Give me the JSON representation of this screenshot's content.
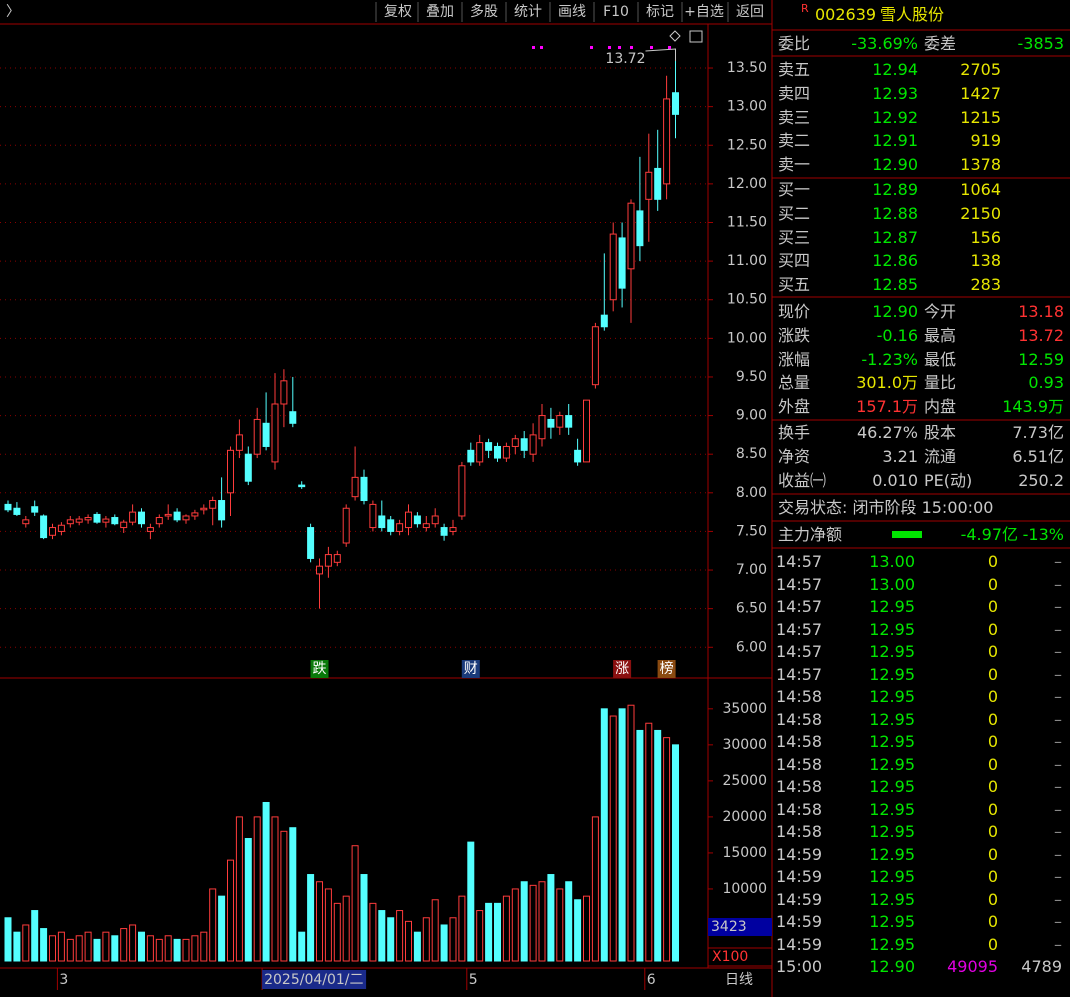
{
  "toolbar": {
    "back": "〉",
    "buttons": [
      "复权",
      "叠加",
      "多股",
      "统计",
      "画线",
      "F10",
      "标记",
      "+自选",
      "返回"
    ]
  },
  "chart_data": {
    "type": "candlestick",
    "ylim": [
      5.9,
      14.07
    ],
    "yticks": [
      {
        "value": 6,
        "label": "6.00"
      },
      {
        "value": 6.5,
        "label": "6.50"
      },
      {
        "value": 7,
        "label": "7.00"
      },
      {
        "value": 7.5,
        "label": "7.50"
      },
      {
        "value": 8,
        "label": "8.00"
      },
      {
        "value": 8.5,
        "label": "8.50"
      },
      {
        "value": 9,
        "label": "9.00"
      },
      {
        "value": 9.5,
        "label": "9.50"
      },
      {
        "value": 10,
        "label": "10.00"
      },
      {
        "value": 10.5,
        "label": "10.50"
      },
      {
        "value": 11,
        "label": "11.00"
      },
      {
        "value": 11.5,
        "label": "11.50"
      },
      {
        "value": 12,
        "label": "12.00"
      },
      {
        "value": 12.5,
        "label": "12.50"
      },
      {
        "value": 13,
        "label": "13.00"
      },
      {
        "value": 13.5,
        "label": "13.50"
      }
    ],
    "grid": true,
    "up_color": "#ff3c3c",
    "down_color": "#54ffff",
    "candles": [
      [
        7.85,
        7.9,
        7.75,
        7.78
      ],
      [
        7.8,
        7.88,
        7.7,
        7.72
      ],
      [
        7.6,
        7.7,
        7.55,
        7.65
      ],
      [
        7.82,
        7.9,
        7.7,
        7.75
      ],
      [
        7.7,
        7.72,
        7.4,
        7.42
      ],
      [
        7.45,
        7.6,
        7.4,
        7.55
      ],
      [
        7.5,
        7.62,
        7.45,
        7.58
      ],
      [
        7.6,
        7.7,
        7.55,
        7.65
      ],
      [
        7.62,
        7.7,
        7.58,
        7.66
      ],
      [
        7.65,
        7.72,
        7.6,
        7.68
      ],
      [
        7.72,
        7.75,
        7.6,
        7.62
      ],
      [
        7.62,
        7.7,
        7.55,
        7.66
      ],
      [
        7.68,
        7.72,
        7.58,
        7.6
      ],
      [
        7.55,
        7.65,
        7.48,
        7.62
      ],
      [
        7.62,
        7.85,
        7.58,
        7.75
      ],
      [
        7.75,
        7.8,
        7.55,
        7.6
      ],
      [
        7.5,
        7.6,
        7.4,
        7.55
      ],
      [
        7.6,
        7.72,
        7.55,
        7.68
      ],
      [
        7.7,
        7.85,
        7.65,
        7.72
      ],
      [
        7.75,
        7.8,
        7.62,
        7.65
      ],
      [
        7.65,
        7.72,
        7.6,
        7.7
      ],
      [
        7.7,
        7.78,
        7.65,
        7.74
      ],
      [
        7.78,
        7.85,
        7.72,
        7.8
      ],
      [
        7.8,
        7.95,
        7.58,
        7.9
      ],
      [
        7.9,
        8.2,
        7.55,
        7.65
      ],
      [
        8.0,
        8.6,
        7.7,
        8.55
      ],
      [
        8.55,
        8.95,
        8.45,
        8.75
      ],
      [
        8.5,
        8.6,
        8.1,
        8.15
      ],
      [
        8.5,
        9.1,
        8.45,
        8.95
      ],
      [
        8.9,
        9.3,
        8.55,
        8.6
      ],
      [
        8.4,
        9.55,
        8.3,
        9.15
      ],
      [
        9.15,
        9.6,
        8.85,
        9.45
      ],
      [
        9.05,
        9.5,
        8.85,
        8.9
      ],
      [
        8.1,
        8.15,
        8.05,
        8.08
      ],
      [
        7.55,
        7.6,
        7.1,
        7.15
      ],
      [
        6.95,
        7.15,
        6.5,
        7.05
      ],
      [
        7.05,
        7.3,
        6.9,
        7.2
      ],
      [
        7.1,
        7.25,
        7.05,
        7.2
      ],
      [
        7.35,
        7.85,
        7.3,
        7.8
      ],
      [
        7.95,
        8.6,
        7.9,
        8.2
      ],
      [
        8.2,
        8.3,
        7.85,
        7.9
      ],
      [
        7.55,
        7.9,
        7.5,
        7.85
      ],
      [
        7.7,
        7.9,
        7.5,
        7.55
      ],
      [
        7.65,
        7.7,
        7.45,
        7.5
      ],
      [
        7.5,
        7.65,
        7.45,
        7.6
      ],
      [
        7.55,
        7.85,
        7.45,
        7.75
      ],
      [
        7.7,
        7.75,
        7.55,
        7.6
      ],
      [
        7.55,
        7.7,
        7.5,
        7.6
      ],
      [
        7.6,
        7.8,
        7.55,
        7.7
      ],
      [
        7.55,
        7.6,
        7.38,
        7.45
      ],
      [
        7.5,
        7.65,
        7.45,
        7.55
      ],
      [
        7.7,
        8.4,
        7.65,
        8.35
      ],
      [
        8.55,
        8.65,
        8.35,
        8.4
      ],
      [
        8.4,
        8.75,
        8.35,
        8.65
      ],
      [
        8.65,
        8.7,
        8.45,
        8.55
      ],
      [
        8.6,
        8.65,
        8.4,
        8.45
      ],
      [
        8.45,
        8.65,
        8.4,
        8.6
      ],
      [
        8.6,
        8.75,
        8.5,
        8.7
      ],
      [
        8.7,
        8.8,
        8.45,
        8.55
      ],
      [
        8.5,
        8.9,
        8.4,
        8.75
      ],
      [
        8.7,
        9.15,
        8.6,
        9.0
      ],
      [
        8.95,
        9.1,
        8.7,
        8.85
      ],
      [
        8.85,
        9.05,
        8.75,
        9.0
      ],
      [
        9.0,
        9.15,
        8.75,
        8.85
      ],
      [
        8.55,
        8.7,
        8.35,
        8.4
      ],
      [
        8.4,
        9.2,
        8.4,
        9.2
      ],
      [
        9.4,
        10.2,
        9.35,
        10.15
      ],
      [
        10.3,
        11.1,
        10.1,
        10.15
      ],
      [
        10.5,
        11.5,
        10.35,
        11.35
      ],
      [
        11.3,
        11.5,
        10.4,
        10.65
      ],
      [
        10.9,
        11.8,
        10.2,
        11.75
      ],
      [
        11.65,
        12.35,
        11.0,
        11.2
      ],
      [
        11.8,
        12.65,
        11.25,
        12.15
      ],
      [
        12.2,
        12.7,
        11.65,
        11.8
      ],
      [
        12.0,
        13.4,
        11.8,
        13.1
      ],
      [
        13.18,
        13.72,
        12.59,
        12.9
      ]
    ],
    "high_label": "13.72",
    "events": [
      {
        "index": 35,
        "label": "跌"
      },
      {
        "index": 52,
        "label": "财"
      },
      {
        "index": 69,
        "label": "涨"
      },
      {
        "index": 74,
        "label": "榜"
      }
    ],
    "volume": {
      "ylim": [
        0,
        39000
      ],
      "yticks": [
        10000,
        15000,
        20000,
        25000,
        30000,
        35000
      ],
      "values": [
        6000,
        4000,
        5000,
        7000,
        4500,
        3500,
        4000,
        3000,
        3500,
        4000,
        3000,
        4000,
        3500,
        4500,
        5000,
        4000,
        3500,
        3000,
        3500,
        3000,
        3000,
        3500,
        4000,
        10000,
        9000,
        14000,
        20000,
        17000,
        20000,
        22000,
        20000,
        18000,
        18500,
        4000,
        12000,
        11000,
        10000,
        8000,
        9000,
        16000,
        12000,
        8000,
        7000,
        6000,
        7000,
        5500,
        4000,
        6000,
        8500,
        5000,
        6000,
        9000,
        16500,
        7000,
        8000,
        8000,
        9000,
        10000,
        11000,
        10500,
        11000,
        12000,
        10000,
        11000,
        8500,
        9000,
        20000,
        35000,
        34000,
        35000,
        35500,
        32000,
        33000,
        32000,
        31000,
        30000
      ],
      "current": "3423",
      "unit": "X100"
    },
    "x_labels": [
      {
        "index": 6,
        "label": "3"
      },
      {
        "index": 29,
        "label": "2025/04/01/二"
      },
      {
        "index": 52,
        "label": "5"
      },
      {
        "index": 72,
        "label": "6"
      }
    ],
    "period": "日线"
  },
  "quote": {
    "flag": "R",
    "code": "002639",
    "name": "雪人股份",
    "ratio": [
      "委比",
      "-33.69%",
      "委差",
      "-3853"
    ],
    "asks": [
      [
        "卖五",
        "12.94",
        "2705"
      ],
      [
        "卖四",
        "12.93",
        "1427"
      ],
      [
        "卖三",
        "12.92",
        "1215"
      ],
      [
        "卖二",
        "12.91",
        "919"
      ],
      [
        "卖一",
        "12.90",
        "1378"
      ]
    ],
    "bids": [
      [
        "买一",
        "12.89",
        "1064"
      ],
      [
        "买二",
        "12.88",
        "2150"
      ],
      [
        "买三",
        "12.87",
        "156"
      ],
      [
        "买四",
        "12.86",
        "138"
      ],
      [
        "买五",
        "12.85",
        "283"
      ]
    ],
    "stats": [
      [
        "现价",
        "12.90",
        "今开",
        "13.18"
      ],
      [
        "涨跌",
        "-0.16",
        "最高",
        "13.72"
      ],
      [
        "涨幅",
        "-1.23%",
        "最低",
        "12.59"
      ],
      [
        "总量",
        "301.0万",
        "量比",
        "0.93"
      ],
      [
        "外盘",
        "157.1万",
        "内盘",
        "143.9万"
      ]
    ],
    "stats2": [
      [
        "换手",
        "46.27%",
        "股本",
        "7.73亿"
      ],
      [
        "净资",
        "3.21",
        "流通",
        "6.51亿"
      ],
      [
        "收益㈠",
        "0.010",
        "PE(动)",
        "250.2"
      ]
    ],
    "status": "交易状态: 闭市阶段 15:00:00",
    "flow": [
      "主力净额",
      "-4.97亿",
      "-13%"
    ],
    "trades": [
      [
        "14:57",
        "13.00",
        "0",
        "–"
      ],
      [
        "14:57",
        "13.00",
        "0",
        "–"
      ],
      [
        "14:57",
        "12.95",
        "0",
        "–"
      ],
      [
        "14:57",
        "12.95",
        "0",
        "–"
      ],
      [
        "14:57",
        "12.95",
        "0",
        "–"
      ],
      [
        "14:57",
        "12.95",
        "0",
        "–"
      ],
      [
        "14:58",
        "12.95",
        "0",
        "–"
      ],
      [
        "14:58",
        "12.95",
        "0",
        "–"
      ],
      [
        "14:58",
        "12.95",
        "0",
        "–"
      ],
      [
        "14:58",
        "12.95",
        "0",
        "–"
      ],
      [
        "14:58",
        "12.95",
        "0",
        "–"
      ],
      [
        "14:58",
        "12.95",
        "0",
        "–"
      ],
      [
        "14:58",
        "12.95",
        "0",
        "–"
      ],
      [
        "14:59",
        "12.95",
        "0",
        "–"
      ],
      [
        "14:59",
        "12.95",
        "0",
        "–"
      ],
      [
        "14:59",
        "12.95",
        "0",
        "–"
      ],
      [
        "14:59",
        "12.95",
        "0",
        "–"
      ],
      [
        "14:59",
        "12.95",
        "0",
        "–"
      ],
      [
        "15:00",
        "12.90",
        "49095",
        "4789"
      ]
    ]
  }
}
